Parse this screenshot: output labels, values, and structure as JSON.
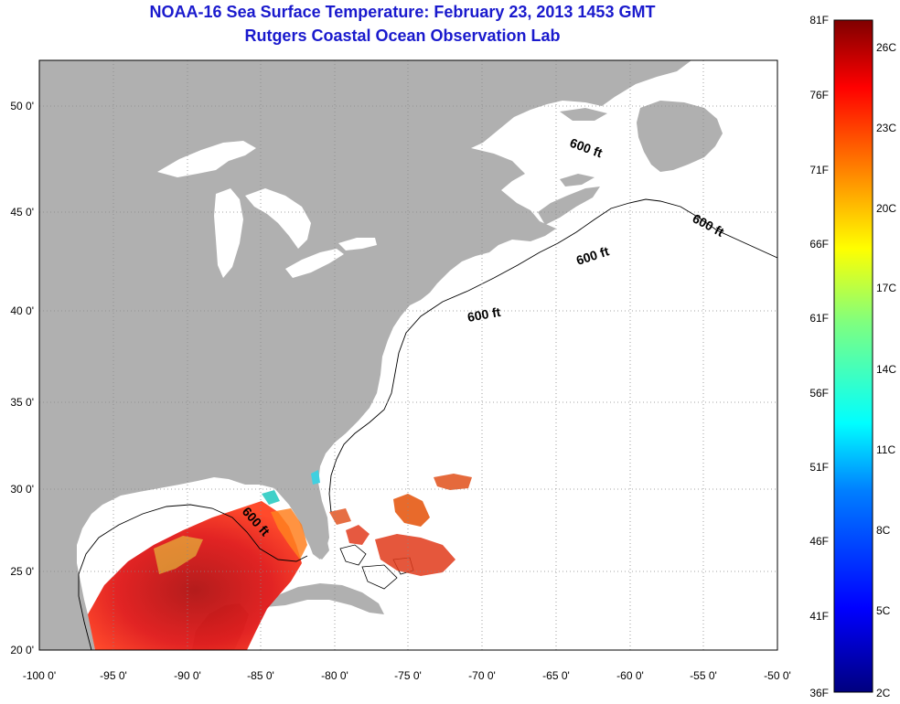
{
  "title": {
    "line1": "NOAA-16 Sea Surface Temperature:  February 23, 2013 1453 GMT",
    "line2": "Rutgers Coastal Ocean Observation Lab"
  },
  "map": {
    "lon_ticks": [
      "-100 0'",
      "-95 0'",
      "-90 0'",
      "-85 0'",
      "-80 0'",
      "-75 0'",
      "-70 0'",
      "-65 0'",
      "-60 0'",
      "-55 0'",
      "-50 0'"
    ],
    "lat_ticks": [
      "50 0'",
      "45 0'",
      "40 0'",
      "35 0'",
      "30 0'",
      "25 0'",
      "20 0'"
    ],
    "contour_label": "600 ft",
    "colors": {
      "land": "#b0b0b0",
      "water": "#ffffff",
      "grid": "#888888"
    }
  },
  "colorbar": {
    "fahrenheit_labels": [
      "81F",
      "76F",
      "71F",
      "66F",
      "61F",
      "56F",
      "51F",
      "46F",
      "41F",
      "36F"
    ],
    "celsius_labels": [
      "26C",
      "23C",
      "20C",
      "17C",
      "14C",
      "11C",
      "8C",
      "5C",
      "2C"
    ],
    "colors": [
      "#00007f",
      "#0000ff",
      "#007fff",
      "#00ffff",
      "#7fff7f",
      "#ffff00",
      "#ff7f00",
      "#ff0000",
      "#7f0000"
    ]
  }
}
